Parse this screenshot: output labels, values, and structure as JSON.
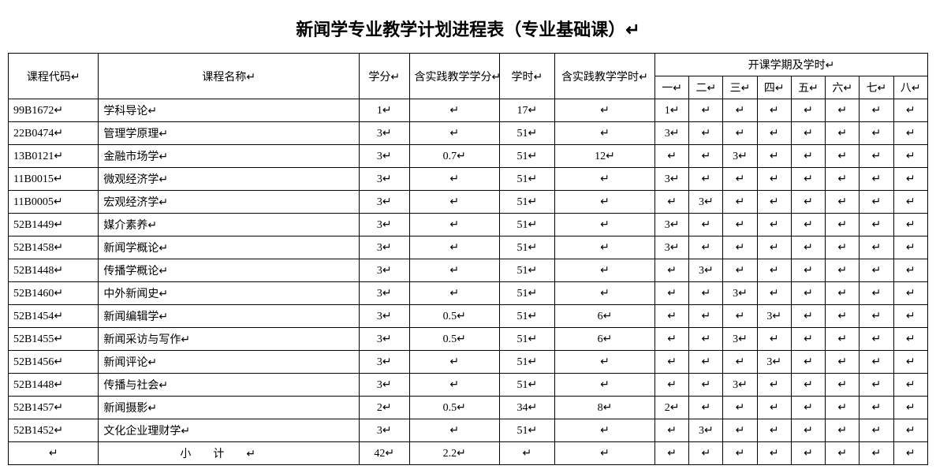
{
  "title": "新闻学专业教学计划进程表（专业基础课）",
  "return_mark": "↵",
  "header": {
    "code": "课程代码",
    "name": "课程名称",
    "credit": "学分",
    "practice_credit": "含实践教学学分",
    "hours": "学时",
    "practice_hours": "含实践教学学时",
    "semesters_group": "开课学期及学时",
    "sem_labels": [
      "一",
      "二",
      "三",
      "四",
      "五",
      "六",
      "七",
      "八"
    ]
  },
  "rows": [
    {
      "code": "99B1672",
      "name": "学科导论",
      "credit": "1",
      "pcredit": "",
      "hours": "17",
      "phours": "",
      "sem": [
        "1",
        "",
        "",
        "",
        "",
        "",
        "",
        ""
      ]
    },
    {
      "code": "22B0474",
      "name": "管理学原理",
      "credit": "3",
      "pcredit": "",
      "hours": "51",
      "phours": "",
      "sem": [
        "3",
        "",
        "",
        "",
        "",
        "",
        "",
        ""
      ]
    },
    {
      "code": "13B0121",
      "name": "金融市场学",
      "credit": "3",
      "pcredit": "0.7",
      "hours": "51",
      "phours": "12",
      "sem": [
        "",
        "",
        "3",
        "",
        "",
        "",
        "",
        ""
      ]
    },
    {
      "code": "11B0015",
      "name": "微观经济学",
      "credit": "3",
      "pcredit": "",
      "hours": "51",
      "phours": "",
      "sem": [
        "3",
        "",
        "",
        "",
        "",
        "",
        "",
        ""
      ]
    },
    {
      "code": "11B0005",
      "name": "宏观经济学",
      "credit": "3",
      "pcredit": "",
      "hours": "51",
      "phours": "",
      "sem": [
        "",
        "3",
        "",
        "",
        "",
        "",
        "",
        ""
      ]
    },
    {
      "code": "52B1449",
      "name": "媒介素养",
      "credit": "3",
      "pcredit": "",
      "hours": "51",
      "phours": "",
      "sem": [
        "3",
        "",
        "",
        "",
        "",
        "",
        "",
        ""
      ]
    },
    {
      "code": "52B1458",
      "name": "新闻学概论",
      "credit": "3",
      "pcredit": "",
      "hours": "51",
      "phours": "",
      "sem": [
        "3",
        "",
        "",
        "",
        "",
        "",
        "",
        ""
      ]
    },
    {
      "code": "52B1448",
      "name": "传播学概论",
      "credit": "3",
      "pcredit": "",
      "hours": "51",
      "phours": "",
      "sem": [
        "",
        "3",
        "",
        "",
        "",
        "",
        "",
        ""
      ]
    },
    {
      "code": "52B1460",
      "name": "中外新闻史",
      "credit": "3",
      "pcredit": "",
      "hours": "51",
      "phours": "",
      "sem": [
        "",
        "",
        "3",
        "",
        "",
        "",
        "",
        ""
      ]
    },
    {
      "code": "52B1454",
      "name": "新闻编辑学",
      "credit": "3",
      "pcredit": "0.5",
      "hours": "51",
      "phours": "6",
      "sem": [
        "",
        "",
        "",
        "3",
        "",
        "",
        "",
        ""
      ]
    },
    {
      "code": "52B1455",
      "name": "新闻采访与写作",
      "credit": "3",
      "pcredit": "0.5",
      "hours": "51",
      "phours": "6",
      "sem": [
        "",
        "",
        "3",
        "",
        "",
        "",
        "",
        ""
      ]
    },
    {
      "code": "52B1456",
      "name": "新闻评论",
      "credit": "3",
      "pcredit": "",
      "hours": "51",
      "phours": "",
      "sem": [
        "",
        "",
        "",
        "3",
        "",
        "",
        "",
        ""
      ]
    },
    {
      "code": "52B1448",
      "name": "传播与社会",
      "credit": "3",
      "pcredit": "",
      "hours": "51",
      "phours": "",
      "sem": [
        "",
        "",
        "3",
        "",
        "",
        "",
        "",
        ""
      ]
    },
    {
      "code": "52B1457",
      "name": "新闻摄影",
      "credit": "2",
      "pcredit": "0.5",
      "hours": "34",
      "phours": "8",
      "sem": [
        "2",
        "",
        "",
        "",
        "",
        "",
        "",
        ""
      ]
    },
    {
      "code": "52B1452",
      "name": "文化企业理财学",
      "credit": "3",
      "pcredit": "",
      "hours": "51",
      "phours": "",
      "sem": [
        "",
        "3",
        "",
        "",
        "",
        "",
        "",
        ""
      ]
    }
  ],
  "subtotal": {
    "label": "小计",
    "credit": "42",
    "pcredit": "2.2",
    "hours": "",
    "phours": "",
    "sem": [
      "",
      "",
      "",
      "",
      "",
      "",
      "",
      ""
    ]
  }
}
